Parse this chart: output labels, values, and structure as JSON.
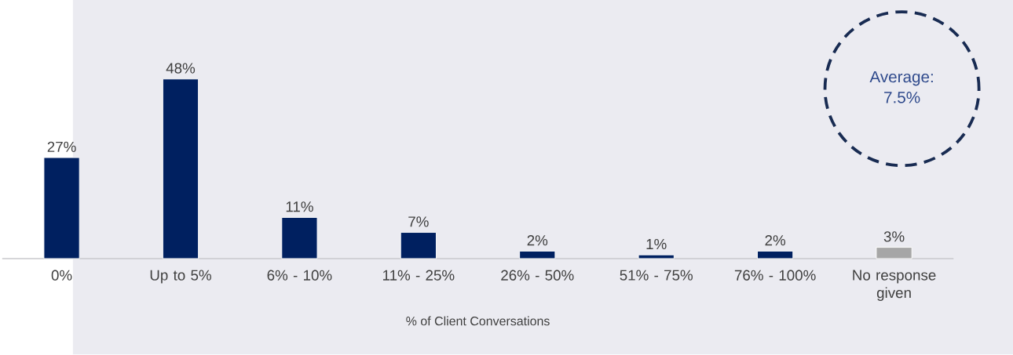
{
  "chart_data": {
    "type": "bar",
    "xlabel": "% of Client Conversations",
    "categories": [
      "0%",
      "Up to 5%",
      "6% - 10%",
      "11% - 25%",
      "26% - 50%",
      "51% - 75%",
      "76% - 100%",
      "No response given"
    ],
    "values": [
      27,
      48,
      11,
      7,
      2,
      1,
      2,
      3
    ],
    "colors": [
      "#002060",
      "#002060",
      "#002060",
      "#002060",
      "#002060",
      "#002060",
      "#002060",
      "#a6a6a6"
    ],
    "value_labels": [
      "27%",
      "48%",
      "11%",
      "7%",
      "2%",
      "1%",
      "2%",
      "3%"
    ],
    "annotations": [
      "Average: 7.5%"
    ]
  }
}
